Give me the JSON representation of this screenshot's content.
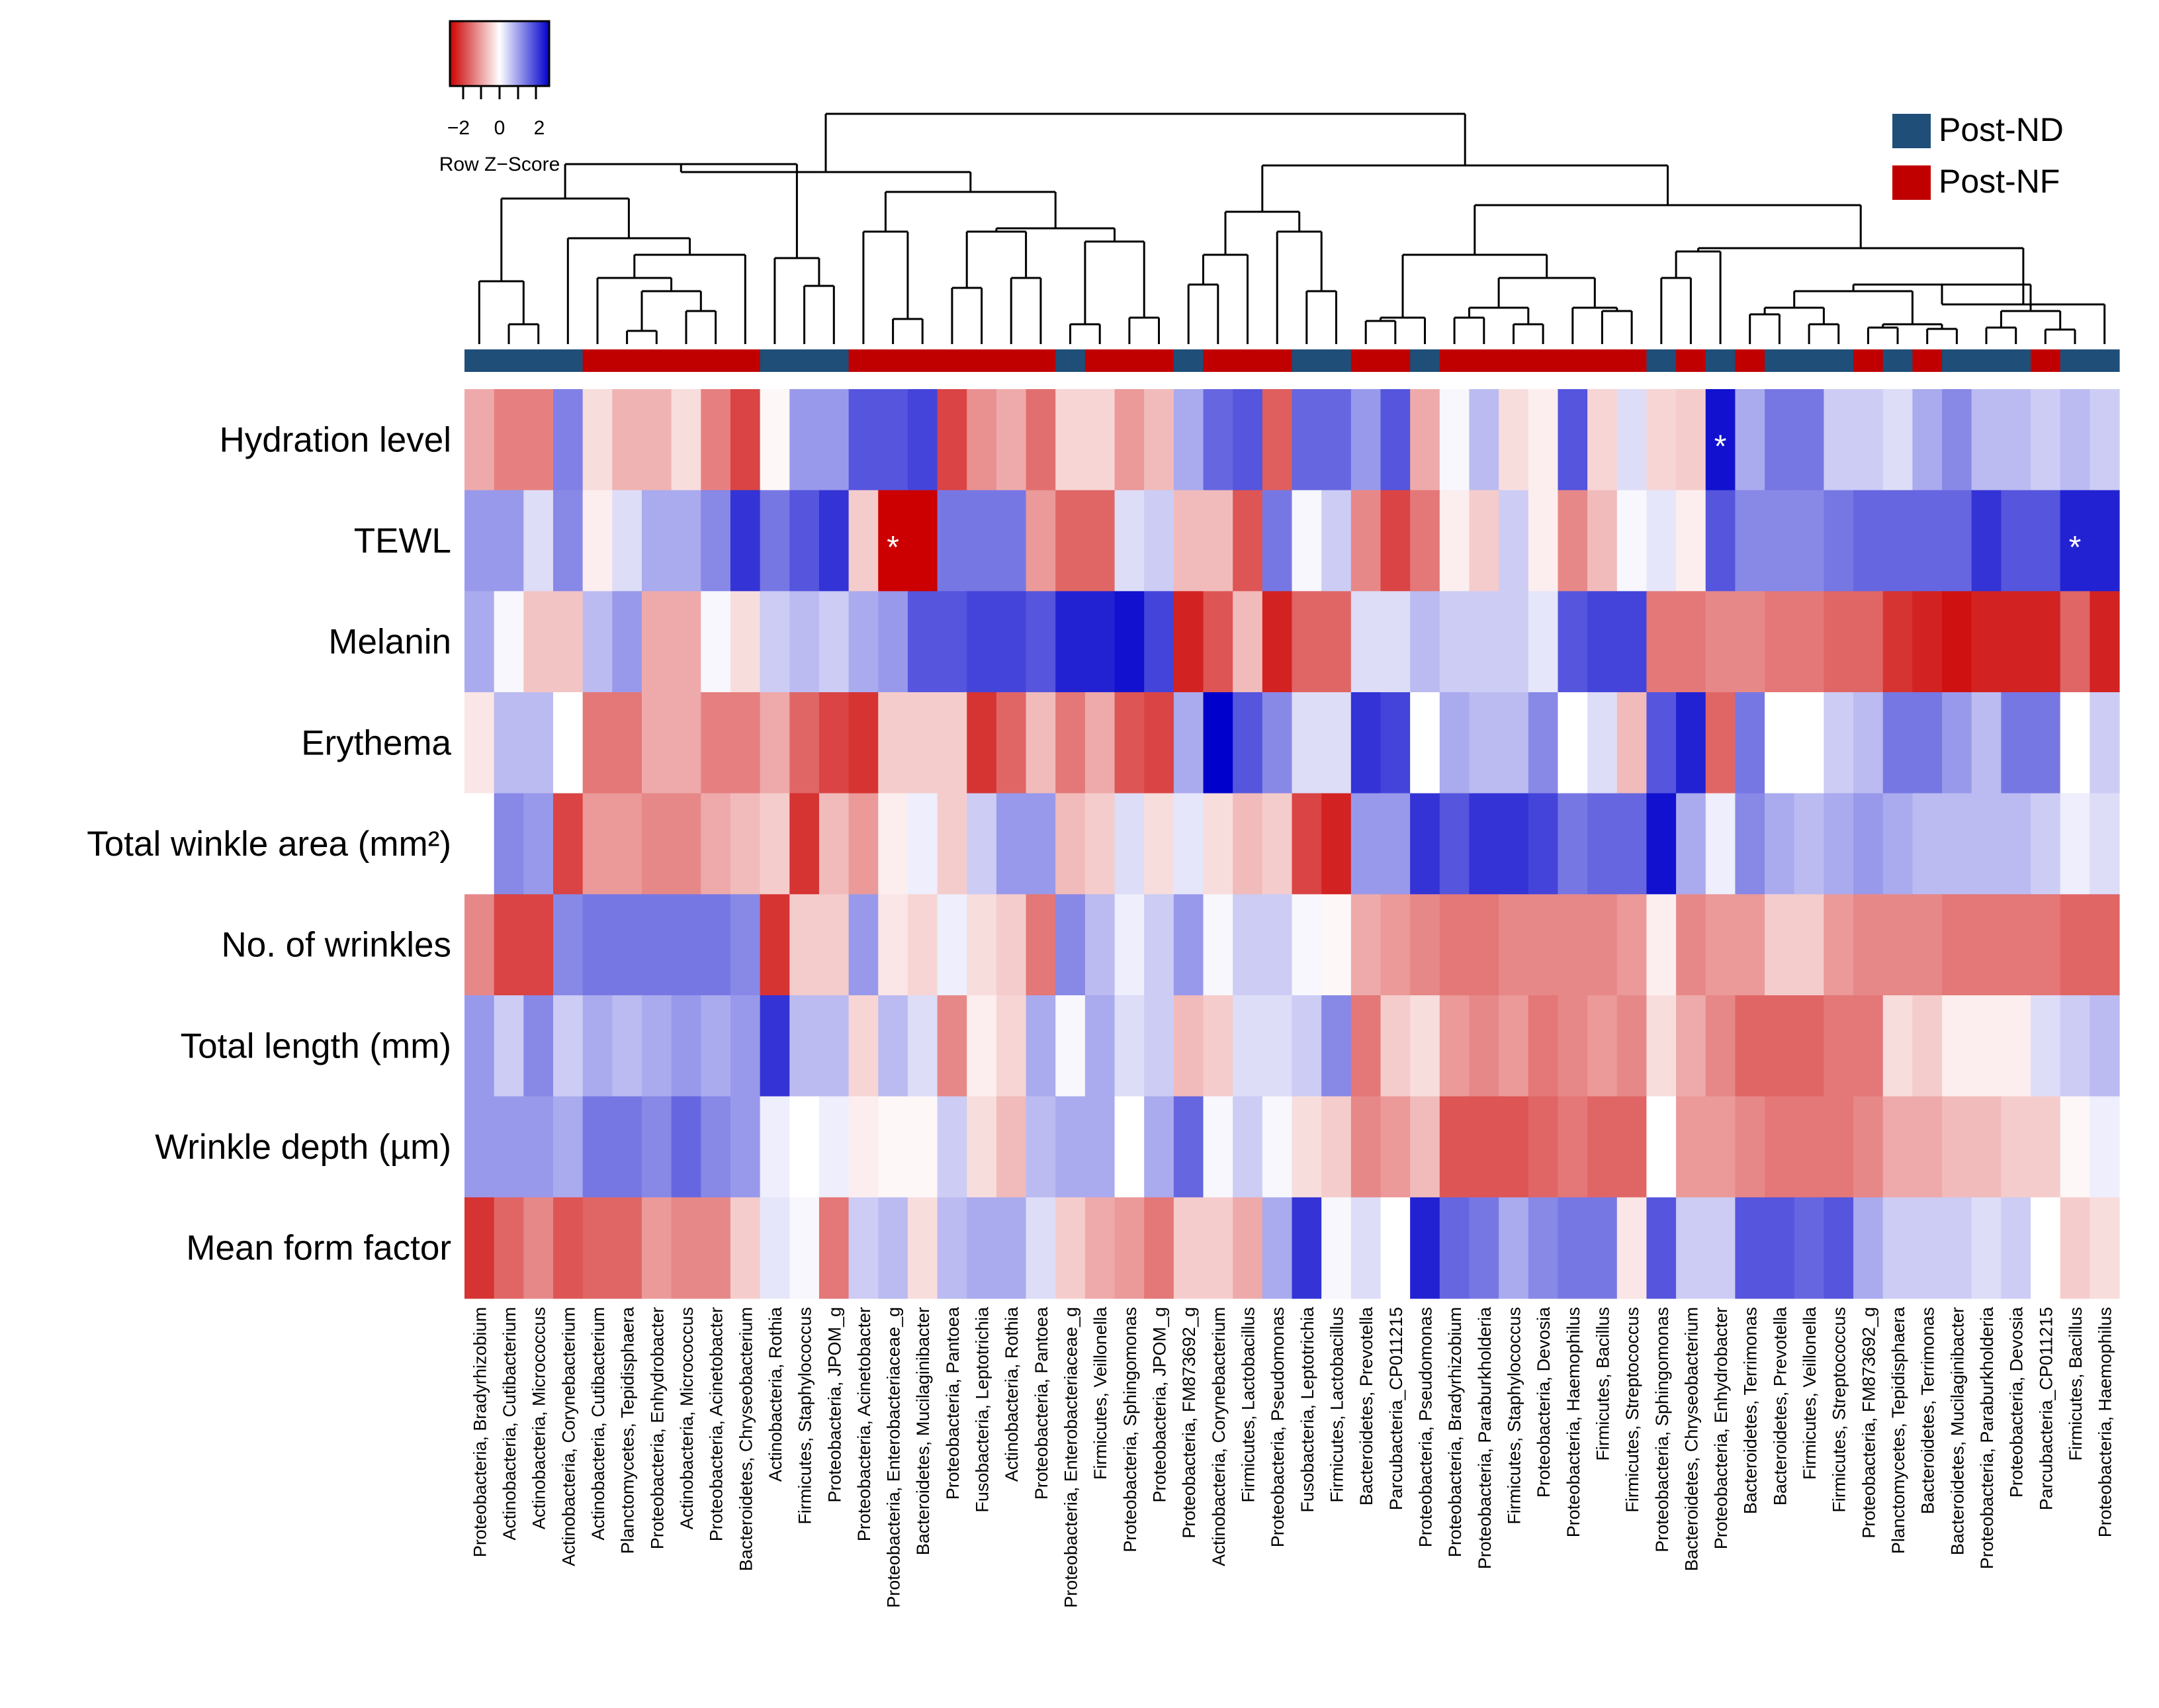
{
  "chart_data": {
    "type": "heatmap",
    "title": "",
    "xlabel": "",
    "ylabel": "",
    "color_key": {
      "title": "Row Z−Score",
      "ticks": [
        "−2",
        "0",
        "2"
      ],
      "range": [
        -3,
        3
      ],
      "low_color": "#cc0000",
      "mid_color": "#ffffff",
      "high_color": "#0000cc"
    },
    "legend": {
      "position": "top-right",
      "entries": [
        {
          "label": "Post-ND",
          "color": "#1f4e79"
        },
        {
          "label": "Post-NF",
          "color": "#c00000"
        }
      ]
    },
    "rows": [
      "Hydration level",
      "TEWL",
      "Melanin",
      "Erythema",
      "Total winkle area (mm²)",
      "No. of wrinkles",
      "Total length (mm)",
      "Wrinkle depth (µm)",
      "Mean form factor"
    ],
    "columns": [
      "Proteobacteria, Bradyrhizobium",
      "Actinobacteria, Cutibacterium",
      "Actinobacteria, Micrococcus",
      "Actinobacteria, Corynebacterium",
      "Actinobacteria, Cutibacterium",
      "Planctomycetes, Tepidisphaera",
      "Proteobacteria, Enhydrobacter",
      "Actinobacteria, Micrococcus",
      "Proteobacteria, Acinetobacter",
      "Bacteroidetes, Chryseobacterium",
      "Actinobacteria, Rothia",
      "Firmicutes, Staphylococcus",
      "Proteobacteria, JPOM_g",
      "Proteobacteria, Acinetobacter",
      "Proteobacteria, Enterobacteriaceae_g",
      "Bacteroidetes, Mucilaginibacter",
      "Proteobacteria, Pantoea",
      "Fusobacteria, Leptotrichia",
      "Actinobacteria, Rothia",
      "Proteobacteria, Pantoea",
      "Proteobacteria, Enterobacteriaceae_g",
      "Firmicutes, Veillonella",
      "Proteobacteria, Sphingomonas",
      "Proteobacteria, JPOM_g",
      "Proteobacteria, FM873692_g",
      "Actinobacteria, Corynebacterium",
      "Firmicutes, Lactobacillus",
      "Proteobacteria, Pseudomonas",
      "Fusobacteria, Leptotrichia",
      "Firmicutes, Lactobacillus",
      "Bacteroidetes, Prevotella",
      "Parcubacteria_CP011215",
      "Proteobacteria, Pseudomonas",
      "Proteobacteria, Bradyrhizobium",
      "Proteobacteria, Paraburkholderia",
      "Firmicutes, Staphylococcus",
      "Proteobacteria, Devosia",
      "Proteobacteria, Haemophilus",
      "Firmicutes, Bacillus",
      "Firmicutes, Streptococcus",
      "Proteobacteria, Sphingomonas",
      "Bacteroidetes, Chryseobacterium",
      "Proteobacteria, Enhydrobacter",
      "Bacteroidetes, Terrimonas",
      "Bacteroidetes, Prevotella",
      "Firmicutes, Veillonella",
      "Firmicutes, Streptococcus",
      "Proteobacteria, FM873692_g",
      "Planctomycetes, Tepidisphaera",
      "Bacteroidetes, Terrimonas",
      "Bacteroidetes, Mucilaginibacter",
      "Proteobacteria, Paraburkholderia",
      "Proteobacteria, Devosia",
      "Parcubacteria_CP011215",
      "Firmicutes, Bacillus",
      "Proteobacteria, Haemophilus"
    ],
    "column_groups": [
      "ND",
      "ND",
      "ND",
      "ND",
      "NF",
      "NF",
      "NF",
      "NF",
      "NF",
      "NF",
      "ND",
      "ND",
      "ND",
      "NF",
      "NF",
      "NF",
      "NF",
      "NF",
      "NF",
      "NF",
      "ND",
      "NF",
      "NF",
      "NF",
      "ND",
      "NF",
      "NF",
      "NF",
      "ND",
      "ND",
      "NF",
      "NF",
      "ND",
      "NF",
      "NF",
      "NF",
      "NF",
      "NF",
      "NF",
      "NF",
      "ND",
      "NF",
      "ND",
      "NF",
      "ND",
      "ND",
      "ND",
      "NF",
      "ND",
      "NF",
      "ND",
      "ND",
      "ND",
      "NF",
      "ND",
      "ND"
    ],
    "values": [
      [
        -1.0,
        -1.5,
        -1.5,
        1.5,
        -0.4,
        -0.9,
        -0.9,
        -0.4,
        -1.5,
        -2.2,
        -0.1,
        1.2,
        1.2,
        2.0,
        2.0,
        2.2,
        -2.2,
        -1.3,
        -1.0,
        -1.7,
        -0.5,
        -0.5,
        -1.2,
        -0.8,
        1.0,
        1.8,
        2.0,
        -1.9,
        1.8,
        1.8,
        1.2,
        2.0,
        -1.0,
        0.1,
        0.8,
        -0.4,
        -0.2,
        2.0,
        -0.5,
        0.4,
        -0.5,
        -0.6,
        2.8,
        1.0,
        1.6,
        1.6,
        0.6,
        0.6,
        0.4,
        1.0,
        1.4,
        0.8,
        0.8,
        0.6,
        0.8,
        0.6
      ],
      [
        1.2,
        1.2,
        0.4,
        1.4,
        -0.2,
        0.4,
        1.0,
        1.0,
        1.4,
        2.4,
        1.6,
        2.0,
        2.4,
        -0.6,
        -3.0,
        -3.0,
        1.6,
        1.6,
        1.6,
        -1.2,
        -1.8,
        -1.8,
        0.4,
        0.6,
        -0.8,
        -0.8,
        -2.0,
        1.6,
        0.1,
        0.6,
        -1.4,
        -2.2,
        -1.6,
        -0.2,
        -0.6,
        0.6,
        -0.2,
        -1.4,
        -0.8,
        0.1,
        0.3,
        -0.2,
        2.0,
        1.4,
        1.4,
        1.4,
        1.6,
        1.8,
        1.8,
        1.8,
        1.8,
        2.4,
        2.0,
        2.0,
        2.6,
        2.6
      ],
      [
        1.0,
        0.1,
        -0.7,
        -0.7,
        0.8,
        1.2,
        -1.0,
        -1.0,
        0.1,
        -0.4,
        0.6,
        0.8,
        0.6,
        1.0,
        1.2,
        2.0,
        2.0,
        2.2,
        2.2,
        2.0,
        2.6,
        2.6,
        2.8,
        2.2,
        -2.6,
        -2.0,
        -0.8,
        -2.6,
        -1.8,
        -1.8,
        0.4,
        0.4,
        0.8,
        0.6,
        0.6,
        0.6,
        0.3,
        2.0,
        2.2,
        2.2,
        -1.6,
        -1.6,
        -1.4,
        -1.4,
        -1.6,
        -1.6,
        -1.8,
        -1.8,
        -2.4,
        -2.6,
        -2.8,
        -2.6,
        -2.6,
        -2.6,
        -1.8,
        -2.6
      ],
      [
        -0.3,
        0.8,
        0.8,
        0.0,
        -1.6,
        -1.6,
        -1.0,
        -1.0,
        -1.5,
        -1.5,
        -1.0,
        -1.8,
        -2.2,
        -2.4,
        -0.6,
        -0.6,
        -0.6,
        -2.4,
        -1.8,
        -0.8,
        -1.6,
        -1.0,
        -2.0,
        -2.2,
        1.0,
        3.0,
        2.0,
        1.4,
        0.4,
        0.4,
        2.4,
        2.2,
        0.0,
        1.0,
        0.8,
        0.8,
        1.4,
        0.0,
        0.4,
        -0.8,
        2.0,
        2.6,
        -1.8,
        1.6,
        0.0,
        0.0,
        0.6,
        0.8,
        1.6,
        1.6,
        1.2,
        0.8,
        1.6,
        1.6,
        0.0,
        0.6
      ],
      [
        0.0,
        1.4,
        1.2,
        -2.2,
        -1.2,
        -1.2,
        -1.4,
        -1.4,
        -1.0,
        -0.8,
        -0.6,
        -2.4,
        -0.8,
        -1.2,
        -0.2,
        0.2,
        -0.6,
        0.6,
        1.2,
        1.2,
        -0.8,
        -0.6,
        0.4,
        -0.4,
        0.3,
        -0.4,
        -0.8,
        -0.6,
        -2.2,
        -2.6,
        1.2,
        1.2,
        2.4,
        2.0,
        2.4,
        2.4,
        2.2,
        1.6,
        1.8,
        1.8,
        2.8,
        1.0,
        0.2,
        1.4,
        1.0,
        0.8,
        1.0,
        1.2,
        1.0,
        0.8,
        0.8,
        0.8,
        0.8,
        0.6,
        0.2,
        0.4
      ],
      [
        -1.4,
        -2.2,
        -2.2,
        1.4,
        1.6,
        1.6,
        1.6,
        1.6,
        1.6,
        1.4,
        -2.4,
        -0.6,
        -0.6,
        1.2,
        -0.3,
        -0.5,
        0.2,
        -0.4,
        -0.6,
        -1.6,
        1.4,
        0.8,
        0.2,
        0.6,
        1.2,
        0.1,
        0.6,
        0.6,
        0.1,
        -0.1,
        -1.0,
        -1.2,
        -1.4,
        -1.6,
        -1.6,
        -1.4,
        -1.4,
        -1.4,
        -1.4,
        -1.2,
        -0.2,
        -1.4,
        -1.2,
        -1.2,
        -0.6,
        -0.6,
        -1.2,
        -1.4,
        -1.4,
        -1.4,
        -1.6,
        -1.6,
        -1.6,
        -1.6,
        -1.8,
        -1.8
      ],
      [
        1.2,
        0.6,
        1.4,
        0.6,
        1.0,
        0.8,
        1.0,
        1.2,
        1.0,
        1.2,
        2.4,
        0.8,
        0.8,
        -0.5,
        0.8,
        0.4,
        -1.4,
        -0.2,
        -0.5,
        1.0,
        0.1,
        1.0,
        0.4,
        0.6,
        -0.8,
        -0.6,
        0.4,
        0.4,
        0.6,
        1.4,
        -1.6,
        -0.6,
        -0.4,
        -1.2,
        -1.4,
        -1.2,
        -1.6,
        -1.4,
        -1.2,
        -1.4,
        -0.4,
        -1.0,
        -1.4,
        -1.8,
        -1.8,
        -1.8,
        -1.6,
        -1.6,
        -0.4,
        -0.6,
        -0.2,
        -0.2,
        -0.2,
        0.4,
        0.6,
        0.8
      ],
      [
        1.2,
        1.2,
        1.2,
        1.0,
        1.6,
        1.6,
        1.4,
        1.8,
        1.4,
        1.2,
        0.2,
        0.0,
        0.2,
        -0.2,
        -0.1,
        -0.1,
        0.6,
        -0.4,
        -0.8,
        0.8,
        1.0,
        1.0,
        0.0,
        1.0,
        1.8,
        0.1,
        0.6,
        0.1,
        -0.4,
        -0.6,
        -1.4,
        -1.2,
        -0.8,
        -2.0,
        -2.0,
        -2.0,
        -1.8,
        -1.6,
        -1.8,
        -1.8,
        0.0,
        -1.2,
        -1.2,
        -1.4,
        -1.6,
        -1.6,
        -1.6,
        -1.4,
        -1.0,
        -1.0,
        -0.8,
        -0.8,
        -0.6,
        -0.6,
        -0.1,
        0.2
      ],
      [
        -2.4,
        -1.8,
        -1.4,
        -2.0,
        -1.8,
        -1.8,
        -1.2,
        -1.4,
        -1.4,
        -0.6,
        0.3,
        0.1,
        -1.6,
        0.6,
        0.8,
        -0.4,
        0.8,
        1.0,
        1.0,
        0.4,
        -0.6,
        -1.0,
        -1.2,
        -1.6,
        -0.6,
        -0.6,
        -1.0,
        1.0,
        2.4,
        0.1,
        0.4,
        0.0,
        2.6,
        1.8,
        1.6,
        1.0,
        1.4,
        1.6,
        1.6,
        -0.3,
        2.0,
        0.6,
        0.6,
        2.0,
        2.0,
        1.8,
        2.0,
        1.0,
        0.6,
        0.6,
        0.6,
        0.4,
        0.6,
        0.0,
        -0.6,
        -0.4
      ]
    ],
    "significant_cells": [
      {
        "row": 0,
        "col": 42,
        "label": "*"
      },
      {
        "row": 1,
        "col": 14,
        "label": "*"
      },
      {
        "row": 1,
        "col": 54,
        "label": "*"
      }
    ]
  }
}
